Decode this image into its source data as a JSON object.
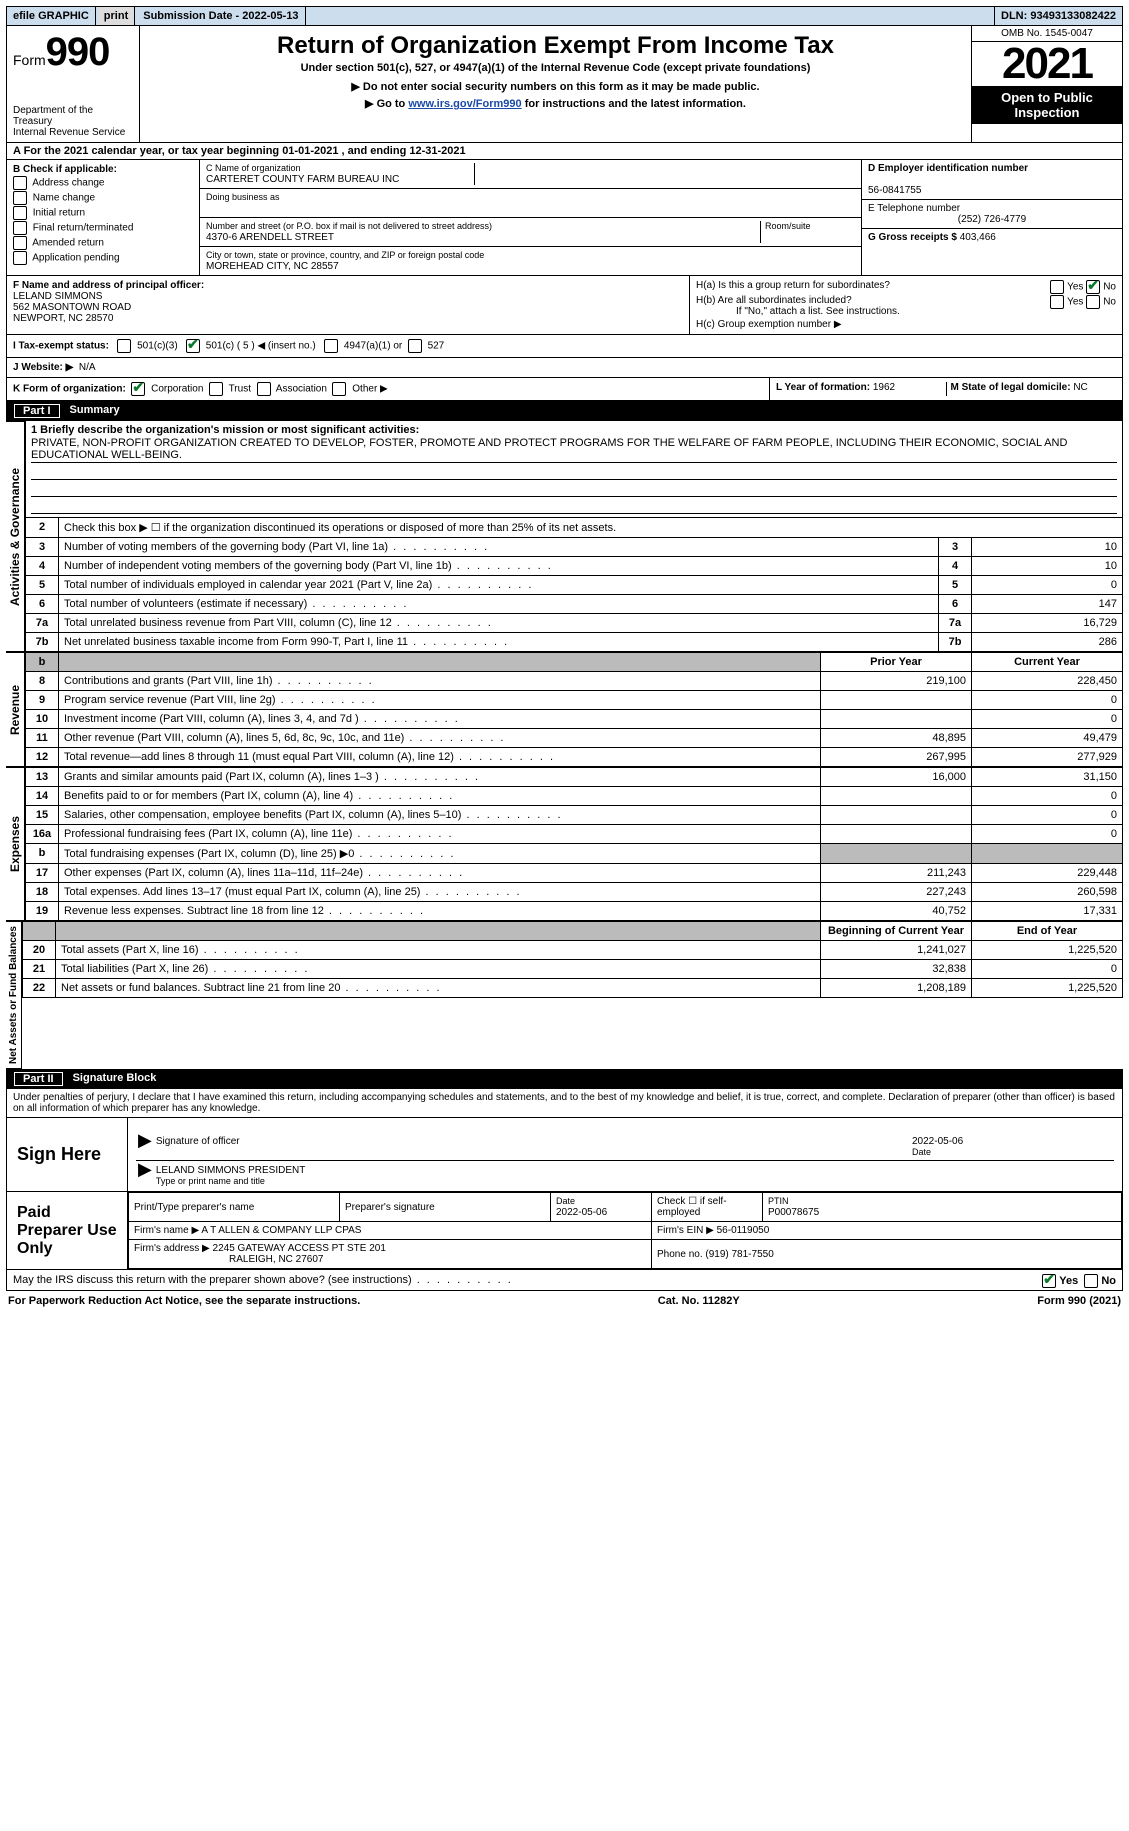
{
  "topbar": {
    "efile": "efile GRAPHIC",
    "print": "print",
    "sub_label": "Submission Date - ",
    "sub_date": "2022-05-13",
    "dln_label": "DLN: ",
    "dln": "93493133082422"
  },
  "header": {
    "form_word": "Form",
    "form_num": "990",
    "dept": "Department of the Treasury\nInternal Revenue Service",
    "title": "Return of Organization Exempt From Income Tax",
    "sub1": "Under section 501(c), 527, or 4947(a)(1) of the Internal Revenue Code (except private foundations)",
    "sub2": "▶ Do not enter social security numbers on this form as it may be made public.",
    "sub3_pre": "▶ Go to ",
    "sub3_link": "www.irs.gov/Form990",
    "sub3_post": " for instructions and the latest information.",
    "omb": "OMB No. 1545-0047",
    "year": "2021",
    "open": "Open to Public Inspection"
  },
  "line_a": "A For the 2021 calendar year, or tax year beginning 01-01-2021   , and ending 12-31-2021",
  "col_b": {
    "title": "B Check if applicable:",
    "opts": [
      "Address change",
      "Name change",
      "Initial return",
      "Final return/terminated",
      "Amended return",
      "Application pending"
    ]
  },
  "col_c": {
    "name_label": "C Name of organization",
    "name": "CARTERET COUNTY FARM BUREAU INC",
    "dba_label": "Doing business as",
    "addr_label": "Number and street (or P.O. box if mail is not delivered to street address)",
    "room_label": "Room/suite",
    "addr": "4370-6 ARENDELL STREET",
    "city_label": "City or town, state or province, country, and ZIP or foreign postal code",
    "city": "MOREHEAD CITY, NC  28557"
  },
  "col_d": {
    "ein_label": "D Employer identification number",
    "ein": "56-0841755",
    "tel_label": "E Telephone number",
    "tel": "(252) 726-4779",
    "gross_label": "G Gross receipts $ ",
    "gross": "403,466"
  },
  "row_f": {
    "label": "F Name and address of principal officer:",
    "name": "LELAND SIMMONS",
    "addr1": "562 MASONTOWN ROAD",
    "addr2": "NEWPORT, NC  28570"
  },
  "row_h": {
    "ha": "H(a)  Is this a group return for subordinates?",
    "hb": "H(b)  Are all subordinates included?",
    "hb_note": "If \"No,\" attach a list. See instructions.",
    "hc": "H(c)  Group exemption number ▶",
    "yes": "Yes",
    "no": "No"
  },
  "row_i": {
    "label": "I   Tax-exempt status:",
    "o1": "501(c)(3)",
    "o2": "501(c) ( 5 ) ◀ (insert no.)",
    "o3": "4947(a)(1) or",
    "o4": "527"
  },
  "row_j": {
    "label": "J   Website: ▶",
    "val": "N/A"
  },
  "row_k": {
    "label": "K Form of organization:",
    "o1": "Corporation",
    "o2": "Trust",
    "o3": "Association",
    "o4": "Other ▶",
    "l_label": "L Year of formation: ",
    "l_val": "1962",
    "m_label": "M State of legal domicile: ",
    "m_val": "NC"
  },
  "part1": {
    "num": "Part I",
    "title": "Summary"
  },
  "mission": {
    "q": "1  Briefly describe the organization's mission or most significant activities:",
    "text": "PRIVATE, NON-PROFIT ORGANIZATION CREATED TO DEVELOP, FOSTER, PROMOTE AND PROTECT PROGRAMS FOR THE WELFARE OF FARM PEOPLE, INCLUDING THEIR ECONOMIC, SOCIAL AND EDUCATIONAL WELL-BEING."
  },
  "line2": "Check this box ▶ ☐  if the organization discontinued its operations or disposed of more than 25% of its net assets.",
  "section_labels": {
    "act": "Activities & Governance",
    "rev": "Revenue",
    "exp": "Expenses",
    "net": "Net Assets or Fund Balances"
  },
  "gov_rows": [
    {
      "n": "3",
      "t": "Number of voting members of the governing body (Part VI, line 1a)",
      "box": "3",
      "v": "10"
    },
    {
      "n": "4",
      "t": "Number of independent voting members of the governing body (Part VI, line 1b)",
      "box": "4",
      "v": "10"
    },
    {
      "n": "5",
      "t": "Total number of individuals employed in calendar year 2021 (Part V, line 2a)",
      "box": "5",
      "v": "0"
    },
    {
      "n": "6",
      "t": "Total number of volunteers (estimate if necessary)",
      "box": "6",
      "v": "147"
    },
    {
      "n": "7a",
      "t": "Total unrelated business revenue from Part VIII, column (C), line 12",
      "box": "7a",
      "v": "16,729"
    },
    {
      "n": "7b",
      "t": "Net unrelated business taxable income from Form 990-T, Part I, line 11",
      "box": "7b",
      "v": "286"
    }
  ],
  "col_headers": {
    "prior": "Prior Year",
    "current": "Current Year"
  },
  "rev_rows": [
    {
      "n": "8",
      "t": "Contributions and grants (Part VIII, line 1h)",
      "p": "219,100",
      "c": "228,450"
    },
    {
      "n": "9",
      "t": "Program service revenue (Part VIII, line 2g)",
      "p": "",
      "c": "0"
    },
    {
      "n": "10",
      "t": "Investment income (Part VIII, column (A), lines 3, 4, and 7d )",
      "p": "",
      "c": "0"
    },
    {
      "n": "11",
      "t": "Other revenue (Part VIII, column (A), lines 5, 6d, 8c, 9c, 10c, and 11e)",
      "p": "48,895",
      "c": "49,479"
    },
    {
      "n": "12",
      "t": "Total revenue—add lines 8 through 11 (must equal Part VIII, column (A), line 12)",
      "p": "267,995",
      "c": "277,929"
    }
  ],
  "exp_rows": [
    {
      "n": "13",
      "t": "Grants and similar amounts paid (Part IX, column (A), lines 1–3 )",
      "p": "16,000",
      "c": "31,150"
    },
    {
      "n": "14",
      "t": "Benefits paid to or for members (Part IX, column (A), line 4)",
      "p": "",
      "c": "0"
    },
    {
      "n": "15",
      "t": "Salaries, other compensation, employee benefits (Part IX, column (A), lines 5–10)",
      "p": "",
      "c": "0"
    },
    {
      "n": "16a",
      "t": "Professional fundraising fees (Part IX, column (A), line 11e)",
      "p": "",
      "c": "0"
    },
    {
      "n": "b",
      "t": "Total fundraising expenses (Part IX, column (D), line 25) ▶0",
      "p": "shaded",
      "c": "shaded"
    },
    {
      "n": "17",
      "t": "Other expenses (Part IX, column (A), lines 11a–11d, 11f–24e)",
      "p": "211,243",
      "c": "229,448"
    },
    {
      "n": "18",
      "t": "Total expenses. Add lines 13–17 (must equal Part IX, column (A), line 25)",
      "p": "227,243",
      "c": "260,598"
    },
    {
      "n": "19",
      "t": "Revenue less expenses. Subtract line 18 from line 12",
      "p": "40,752",
      "c": "17,331"
    }
  ],
  "net_headers": {
    "prior": "Beginning of Current Year",
    "current": "End of Year"
  },
  "net_rows": [
    {
      "n": "20",
      "t": "Total assets (Part X, line 16)",
      "p": "1,241,027",
      "c": "1,225,520"
    },
    {
      "n": "21",
      "t": "Total liabilities (Part X, line 26)",
      "p": "32,838",
      "c": "0"
    },
    {
      "n": "22",
      "t": "Net assets or fund balances. Subtract line 21 from line 20",
      "p": "1,208,189",
      "c": "1,225,520"
    }
  ],
  "part2": {
    "num": "Part II",
    "title": "Signature Block"
  },
  "penalties": "Under penalties of perjury, I declare that I have examined this return, including accompanying schedules and statements, and to the best of my knowledge and belief, it is true, correct, and complete. Declaration of preparer (other than officer) is based on all information of which preparer has any knowledge.",
  "sign": {
    "here": "Sign Here",
    "sig_label": "Signature of officer",
    "date": "2022-05-06",
    "date_label": "Date",
    "name": "LELAND SIMMONS  PRESIDENT",
    "name_label": "Type or print name and title"
  },
  "prep": {
    "title": "Paid Preparer Use Only",
    "h1": "Print/Type preparer's name",
    "h2": "Preparer's signature",
    "h3_label": "Date",
    "h3": "2022-05-06",
    "h4": "Check ☐ if self-employed",
    "h5_label": "PTIN",
    "h5": "P00078675",
    "firm_label": "Firm's name    ▶ ",
    "firm": "A T ALLEN & COMPANY LLP CPAS",
    "ein_label": "Firm's EIN ▶ ",
    "ein": "56-0119050",
    "addr_label": "Firm's address ▶ ",
    "addr1": "2245 GATEWAY ACCESS PT STE 201",
    "addr2": "RALEIGH, NC  27607",
    "phone_label": "Phone no. ",
    "phone": "(919) 781-7550"
  },
  "discuss": "May the IRS discuss this return with the preparer shown above? (see instructions)",
  "footer": {
    "left": "For Paperwork Reduction Act Notice, see the separate instructions.",
    "mid": "Cat. No. 11282Y",
    "right": "Form 990 (2021)"
  }
}
